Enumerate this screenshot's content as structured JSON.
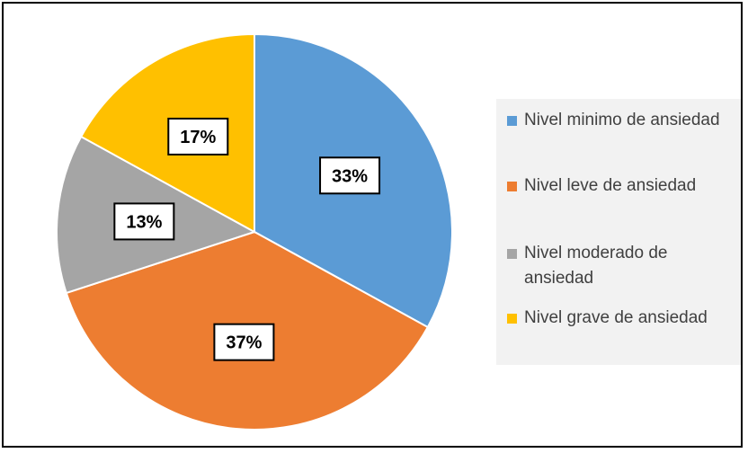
{
  "chart_data": {
    "type": "pie",
    "title": "",
    "series": [
      {
        "values": [
          33,
          37,
          13,
          17
        ]
      }
    ],
    "slices": [
      {
        "label": "Nivel minimo de ansiedad",
        "value": 33,
        "data_label": "33%",
        "color": "#5B9BD5"
      },
      {
        "label": "Nivel leve de ansiedad",
        "value": 37,
        "data_label": "37%",
        "color": "#ED7D31"
      },
      {
        "label": "Nivel moderado de ansiedad",
        "value": 13,
        "data_label": "13%",
        "color": "#A5A5A5"
      },
      {
        "label": "Nivel grave de ansiedad",
        "value": 17,
        "data_label": "17%",
        "color": "#FFC000"
      }
    ],
    "legend_position": "right"
  }
}
